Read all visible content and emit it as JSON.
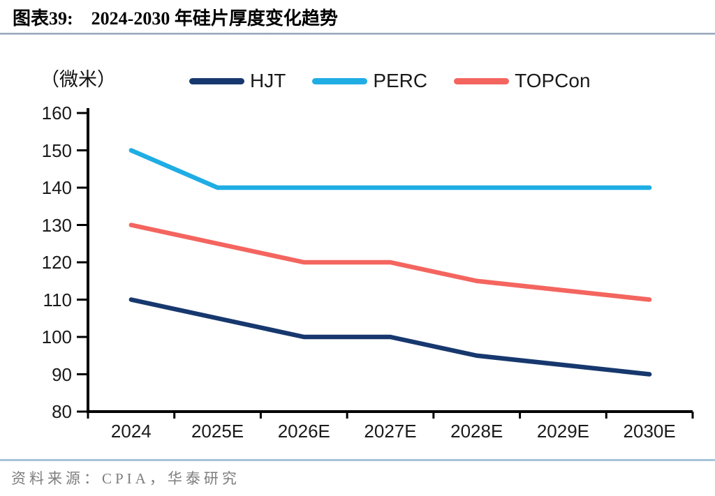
{
  "header": {
    "label": "图表39:",
    "title": "2024-2030 年硅片厚度变化趋势"
  },
  "unit_label": "（微米）",
  "footer": {
    "source": "资料来源：CPIA，华泰研究"
  },
  "colors": {
    "hjt": "#17386E",
    "perc": "#1FADE4",
    "topcon": "#F4655F",
    "axis": "#000000",
    "title_rule": "#8494AB",
    "footer_rule": "#A6C4DA",
    "source_text": "#7E7E7E"
  },
  "chart_data": {
    "type": "line",
    "title": "2024-2030 年硅片厚度变化趋势",
    "unit": "微米",
    "categories": [
      "2024",
      "2025E",
      "2026E",
      "2027E",
      "2028E",
      "2029E",
      "2030E"
    ],
    "series": [
      {
        "name": "HJT",
        "color": "#17386E",
        "values": [
          110,
          105,
          100,
          100,
          95,
          92.5,
          90
        ]
      },
      {
        "name": "PERC",
        "color": "#1FADE4",
        "values": [
          150,
          140,
          140,
          140,
          140,
          140,
          140
        ]
      },
      {
        "name": "TOPCon",
        "color": "#F4655F",
        "values": [
          130,
          125,
          120,
          120,
          115,
          112.5,
          110
        ]
      }
    ],
    "ylim": [
      80,
      160
    ],
    "ytick_step": 10,
    "y_tick_labels": [
      "160",
      "150",
      "140",
      "130",
      "120",
      "110",
      "100",
      "90",
      "80"
    ],
    "legend_position": "top",
    "grid": false
  }
}
